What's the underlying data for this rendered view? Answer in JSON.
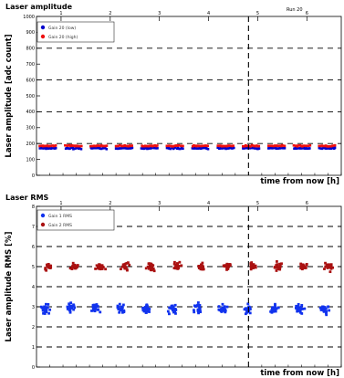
{
  "chart_data": [
    {
      "type": "scatter",
      "title": "Laser amplitude",
      "corner_label": "Run 20",
      "ylabel": "Laser amplitude [adc count]",
      "xlabel": "time from now [h]",
      "ylim": [
        0,
        1000
      ],
      "xlim": [
        -45,
        1
      ],
      "top_ticks": [
        "1",
        "2",
        "3",
        "4",
        "5",
        "6"
      ],
      "grid": true,
      "legend": "top-left",
      "now_marker_x": -13,
      "series": [
        {
          "name": "Gain 20 (low)",
          "color": "#0000cc",
          "level": 170,
          "spread": 6
        },
        {
          "name": "Gain 20 (high)",
          "color": "#ee1111",
          "level": 185,
          "spread": 5
        }
      ]
    },
    {
      "type": "scatter",
      "title": "Laser RMS",
      "ylabel": "Laser amplitude RMS [%]",
      "xlabel": "time from now [h]",
      "ylim": [
        0,
        8
      ],
      "xlim": [
        -45,
        1
      ],
      "top_ticks": [
        "1",
        "2",
        "3",
        "4",
        "5",
        "6"
      ],
      "grid": true,
      "legend": "top-left",
      "now_marker_x": -13,
      "series": [
        {
          "name": "Gain 1 RMS",
          "color": "#1133ee",
          "level": 2.9,
          "spread": 0.35
        },
        {
          "name": "Gain 2 RMS",
          "color": "#aa1111",
          "level": 5.0,
          "spread": 0.28
        }
      ]
    }
  ]
}
